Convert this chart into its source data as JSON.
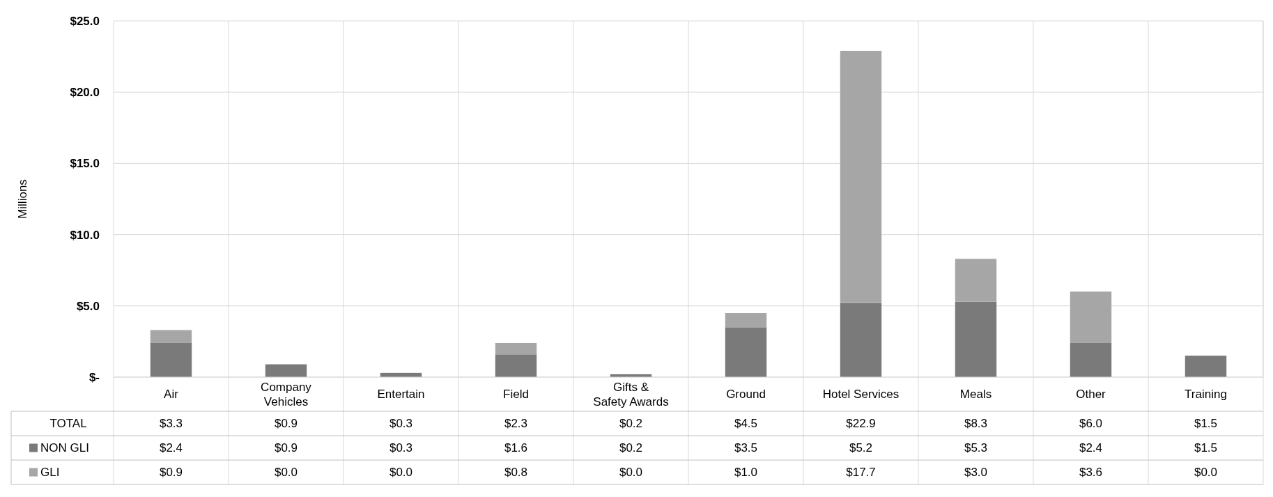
{
  "chart_data": {
    "type": "bar",
    "stacked": true,
    "ylabel": "Millions",
    "categories": [
      "Air",
      "Company Vehicles",
      "Entertain",
      "Field",
      "Gifts & Safety Awards",
      "Ground",
      "Hotel Services",
      "Meals",
      "Other",
      "Training"
    ],
    "series": [
      {
        "name": "NON GLI",
        "color": "#7a7a7a",
        "values": [
          2.4,
          0.9,
          0.3,
          1.6,
          0.2,
          3.5,
          5.2,
          5.3,
          2.4,
          1.5
        ],
        "value_labels": [
          "$2.4",
          "$0.9",
          "$0.3",
          "$1.6",
          "$0.2",
          "$3.5",
          "$5.2",
          "$5.3",
          "$2.4",
          "$1.5"
        ]
      },
      {
        "name": "GLI",
        "color": "#a6a6a6",
        "values": [
          0.9,
          0.0,
          0.0,
          0.8,
          0.0,
          1.0,
          17.7,
          3.0,
          3.6,
          0.0
        ],
        "value_labels": [
          "$0.9",
          "$0.0",
          "$0.0",
          "$0.8",
          "$0.0",
          "$1.0",
          "$17.7",
          "$3.0",
          "$3.6",
          "$0.0"
        ]
      }
    ],
    "annotations": [
      "TOTAL",
      "$3.3",
      "$0.9",
      "$0.3",
      "$2.3",
      "$0.2",
      "$4.5",
      "$22.9",
      "$8.3",
      "$6.0",
      "$1.5"
    ],
    "ylim": [
      0,
      25
    ],
    "yticks": [
      {
        "value": 0,
        "label": "$-"
      },
      {
        "value": 5,
        "label": "$5.0"
      },
      {
        "value": 10,
        "label": "$10.0"
      },
      {
        "value": 15,
        "label": "$15.0"
      },
      {
        "value": 20,
        "label": "$20.0"
      },
      {
        "value": 25,
        "label": "$25.0"
      }
    ],
    "grid": true,
    "legend": "bottom"
  }
}
